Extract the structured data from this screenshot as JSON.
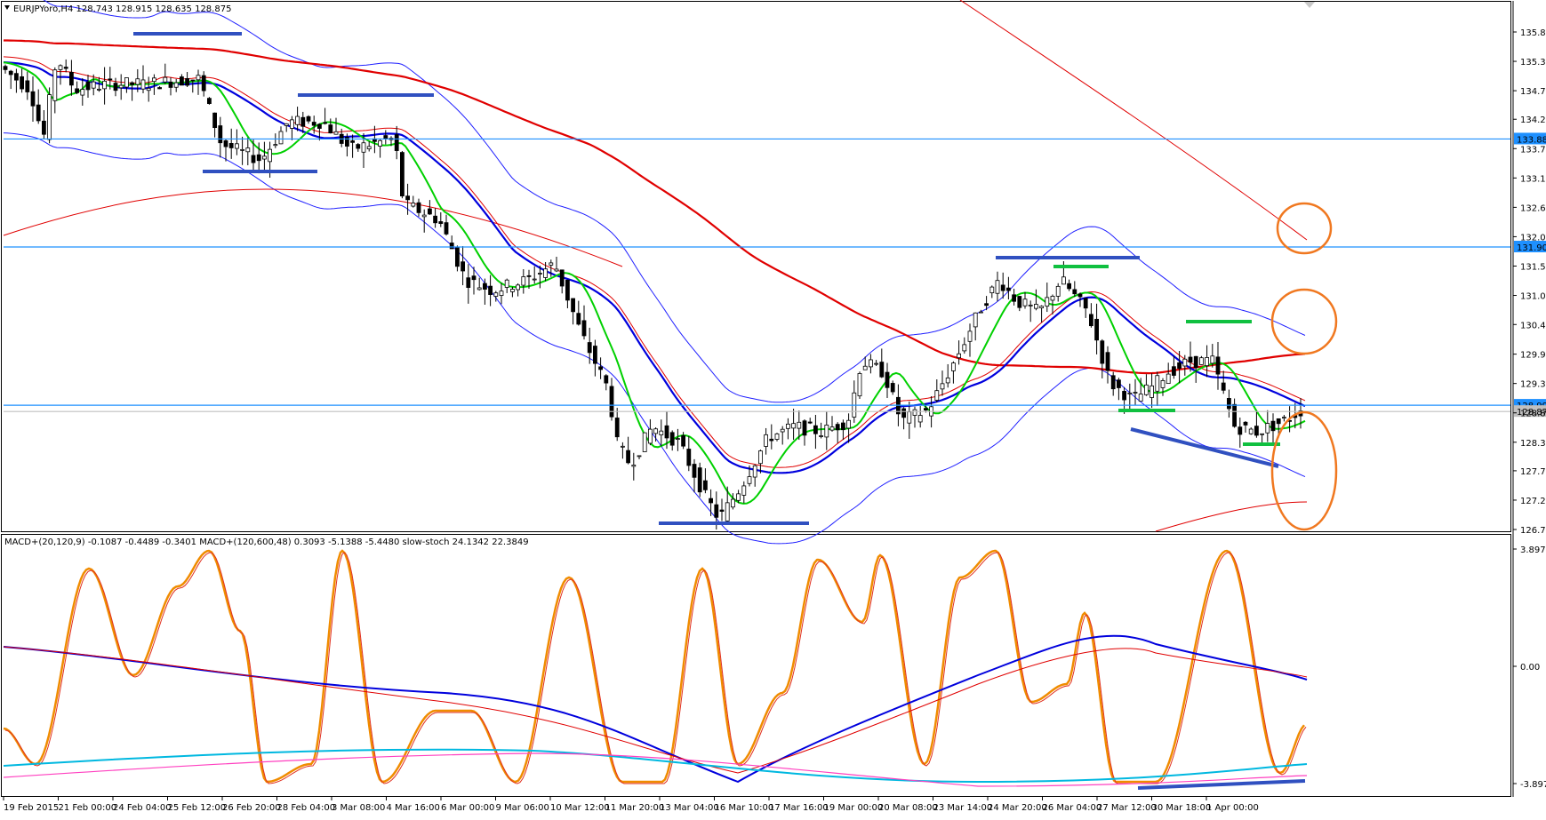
{
  "header": {
    "symbol_info": "EURJPYoro,H4  128.743 128.915 128.635 128.875"
  },
  "indicator_header": "MACD+(20,120,9) -0.1087 -0.4489 -0.3401   MACD+(120,600,48) 0.3093 -5.1388 -5.4480   slow-stoch 24.1342 22.3849",
  "price_axis": {
    "ticks": [
      "135.855",
      "135.315",
      "134.775",
      "134.250",
      "133.710",
      "133.170",
      "132.630",
      "132.090",
      "131.550",
      "131.010",
      "130.475",
      "129.930",
      "129.390",
      "128.850",
      "128.310",
      "127.785",
      "127.245",
      "126.705"
    ]
  },
  "price_tags": [
    {
      "value": "133.887",
      "color": "#1e90ff"
    },
    {
      "value": "131.901",
      "color": "#1e90ff"
    },
    {
      "value": "128.991",
      "color": "#1e90ff"
    },
    {
      "value": "128.875",
      "color": "#c0c0c0"
    }
  ],
  "indicator_axis": {
    "ticks": [
      "3.8973",
      "0.00",
      "-3.8973"
    ]
  },
  "time_axis": {
    "labels": [
      "19 Feb 2015",
      "21 Feb 00:00",
      "24 Feb 04:00",
      "25 Feb 12:00",
      "26 Feb 20:00",
      "28 Feb 04:00",
      "3 Mar 08:00",
      "4 Mar 16:00",
      "6 Mar 00:00",
      "9 Mar 06:00",
      "10 Mar 12:00",
      "11 Mar 20:00",
      "13 Mar 04:00",
      "16 Mar 10:00",
      "17 Mar 16:00",
      "19 Mar 00:00",
      "20 Mar 08:00",
      "23 Mar 14:00",
      "24 Mar 20:00",
      "26 Mar 04:00",
      "27 Mar 12:00",
      "30 Mar 18:00",
      "1 Apr 00:00"
    ]
  },
  "colors": {
    "background": "#ffffff",
    "grid": "#d9d9d9",
    "candle_bull": "#ffffff",
    "candle_bear": "#000000",
    "ma_fast": "#00d000",
    "ma_mid": "#0000dd",
    "ma_slow": "#e00000",
    "bollinger": "#2020ff",
    "horizontal_level": "#1e90ff",
    "annotation_circle": "#f07820",
    "stoch": "#f08c00"
  }
}
